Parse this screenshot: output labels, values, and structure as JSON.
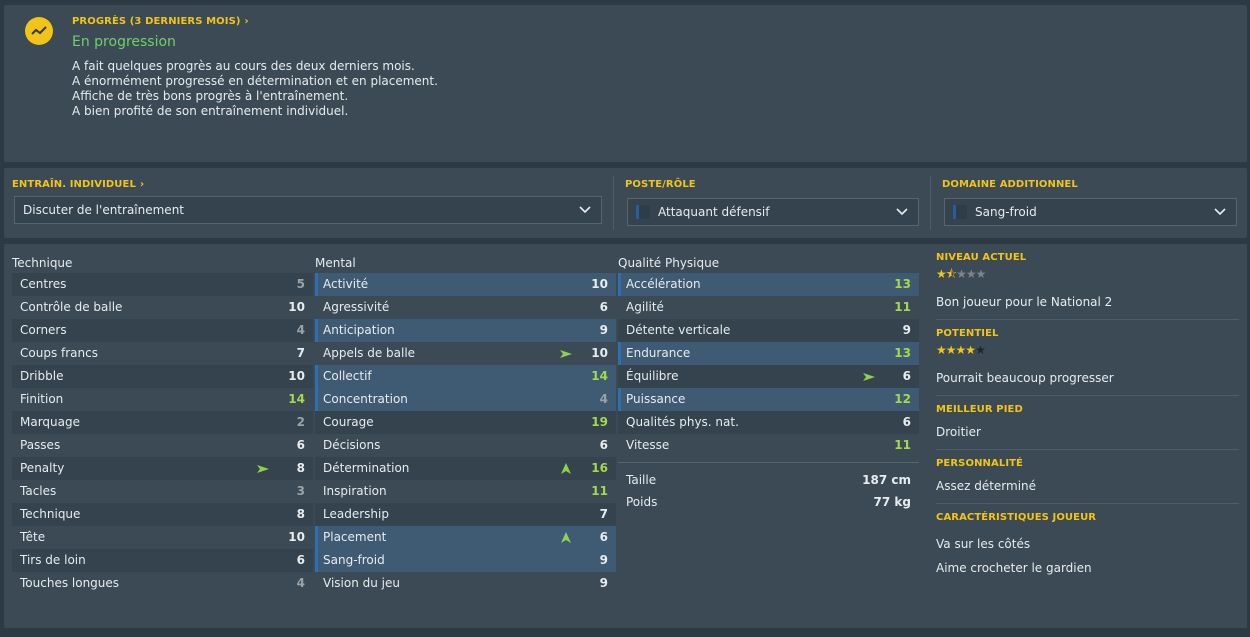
{
  "progress": {
    "header": "PROGRÈS (3 DERNIERS MOIS)",
    "status": "En progression",
    "notes": [
      "A fait quelques progrès au cours des deux derniers mois.",
      "A énormément progressé en détermination et en placement.",
      "Affiche de très bons progrès à l'entraînement.",
      "A bien profité de son entraînement individuel."
    ]
  },
  "training": {
    "header": "ENTRAÎN. INDIVIDUEL",
    "dropdown": "Discuter de l'entraînement",
    "role_header": "POSTE/RÔLE",
    "role_value": "Attaquant défensif",
    "extra_header": "DOMAINE ADDITIONNEL",
    "extra_value": "Sang-froid"
  },
  "attributes": {
    "technique_title": "Technique",
    "mental_title": "Mental",
    "physical_title": "Qualité Physique",
    "technique": [
      {
        "name": "Centres",
        "value": 5
      },
      {
        "name": "Contrôle de balle",
        "value": 10
      },
      {
        "name": "Corners",
        "value": 4
      },
      {
        "name": "Coups francs",
        "value": 7
      },
      {
        "name": "Dribble",
        "value": 10
      },
      {
        "name": "Finition",
        "value": 14
      },
      {
        "name": "Marquage",
        "value": 2
      },
      {
        "name": "Passes",
        "value": 6
      },
      {
        "name": "Penalty",
        "value": 8,
        "trend": "up-right"
      },
      {
        "name": "Tacles",
        "value": 3
      },
      {
        "name": "Technique",
        "value": 8
      },
      {
        "name": "Tête",
        "value": 10
      },
      {
        "name": "Tirs de loin",
        "value": 6
      },
      {
        "name": "Touches longues",
        "value": 4
      }
    ],
    "mental": [
      {
        "name": "Activité",
        "value": 10,
        "key": true
      },
      {
        "name": "Agressivité",
        "value": 6
      },
      {
        "name": "Anticipation",
        "value": 9,
        "key": true
      },
      {
        "name": "Appels de balle",
        "value": 10,
        "trend": "up-right"
      },
      {
        "name": "Collectif",
        "value": 14,
        "key": true
      },
      {
        "name": "Concentration",
        "value": 4,
        "key": true
      },
      {
        "name": "Courage",
        "value": 19
      },
      {
        "name": "Décisions",
        "value": 6
      },
      {
        "name": "Détermination",
        "value": 16,
        "trend": "up"
      },
      {
        "name": "Inspiration",
        "value": 11
      },
      {
        "name": "Leadership",
        "value": 7
      },
      {
        "name": "Placement",
        "value": 6,
        "key": true,
        "trend": "up"
      },
      {
        "name": "Sang-froid",
        "value": 9,
        "key": true
      },
      {
        "name": "Vision du jeu",
        "value": 9
      }
    ],
    "physical": [
      {
        "name": "Accélération",
        "value": 13,
        "key": true
      },
      {
        "name": "Agilité",
        "value": 11
      },
      {
        "name": "Détente verticale",
        "value": 9
      },
      {
        "name": "Endurance",
        "value": 13,
        "key": true
      },
      {
        "name": "Équilibre",
        "value": 6,
        "trend": "up-right"
      },
      {
        "name": "Puissance",
        "value": 12,
        "key": true
      },
      {
        "name": "Qualités phys. nat.",
        "value": 6
      },
      {
        "name": "Vitesse",
        "value": 11
      }
    ],
    "height_label": "Taille",
    "height_value": "187 cm",
    "weight_label": "Poids",
    "weight_value": "77 kg"
  },
  "info": {
    "current_header": "NIVEAU ACTUEL",
    "current_stars": 1.5,
    "current_text": "Bon joueur pour le National 2",
    "potential_header": "POTENTIEL",
    "potential_stars": 4,
    "potential_text": "Pourrait beaucoup progresser",
    "foot_header": "MEILLEUR PIED",
    "foot_text": "Droitier",
    "personality_header": "PERSONNALITÉ",
    "personality_text": "Assez déterminé",
    "traits_header": "CARACTÉRISTIQUES JOUEUR",
    "traits": [
      "Va sur les côtés",
      "Aime crocheter le gardien"
    ]
  },
  "colors": {
    "accent": "#f2c418",
    "positive": "#6fd06b",
    "high_value": "#a5d94a"
  }
}
